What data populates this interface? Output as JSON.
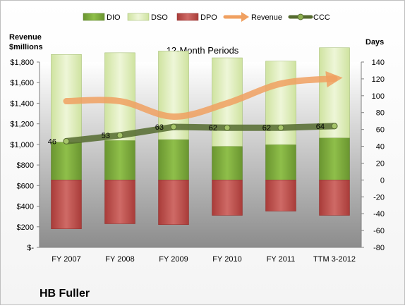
{
  "company": "HB Fuller",
  "chart_data": {
    "type": "bar",
    "subtitle": "12-Month Periods",
    "categories": [
      "FY 2007",
      "FY 2008",
      "FY 2009",
      "FY 2010",
      "FY 2011",
      "TTM 3-2012"
    ],
    "left_axis": {
      "title_line1": "Revenue",
      "title_line2": "$millions",
      "range": [
        0,
        1800
      ],
      "ticks": [
        0,
        200,
        400,
        600,
        800,
        1000,
        1200,
        1400,
        1600,
        1800
      ],
      "tick_labels": [
        "$-",
        "$200",
        "$400",
        "$600",
        "$800",
        "$1,000",
        "$1,200",
        "$1,400",
        "$1,600",
        "$1,800"
      ]
    },
    "right_axis": {
      "title": "Days",
      "range": [
        -80,
        140
      ],
      "ticks": [
        -80,
        -60,
        -40,
        -20,
        0,
        20,
        40,
        60,
        80,
        100,
        120,
        140
      ],
      "tick_labels": [
        "-80",
        "-60",
        "-40",
        "-20",
        "0",
        "20",
        "40",
        "60",
        "80",
        "100",
        "120",
        "140"
      ]
    },
    "series": [
      {
        "name": "DIO",
        "type": "stacked-bar",
        "axis": "right",
        "color": "#77a33a",
        "values": [
          45,
          47,
          48,
          40,
          42,
          50
        ]
      },
      {
        "name": "DSO",
        "type": "stacked-bar",
        "axis": "right",
        "color": "#d8e8b0",
        "values": [
          104,
          104,
          105,
          105,
          99,
          107
        ]
      },
      {
        "name": "DPO",
        "type": "negative-bar",
        "axis": "right",
        "color": "#c0504d",
        "values": [
          -58,
          -52,
          -53,
          -42,
          -37,
          -42
        ]
      },
      {
        "name": "Revenue",
        "type": "line",
        "axis": "left",
        "color": "#f0a060",
        "values": [
          1420,
          1420,
          1270,
          1400,
          1590,
          1640
        ]
      },
      {
        "name": "CCC",
        "type": "line",
        "axis": "right",
        "color": "#556b2f",
        "values": [
          46,
          53,
          63,
          62,
          62,
          64
        ],
        "labels": [
          "46",
          "53",
          "63",
          "62",
          "62",
          "64"
        ]
      }
    ],
    "legend_position": "top",
    "grid": false
  }
}
